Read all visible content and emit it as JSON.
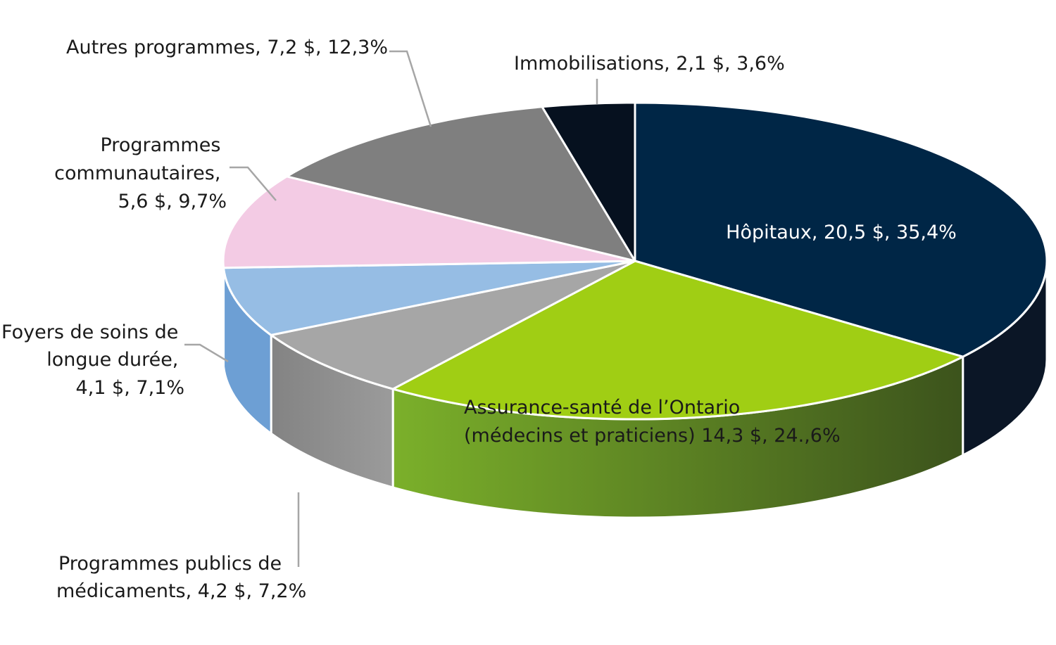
{
  "chart_data": {
    "type": "pie",
    "style": "3d-exploded-tilted",
    "title": "",
    "legend": "none",
    "slices": [
      {
        "name": "Hôpitaux",
        "value": 20.5,
        "percent": 35.4,
        "label_lines": [
          "Hôpitaux,  20,5 $, 35,4%"
        ],
        "color": "#002646",
        "side_dark": "#0b1626",
        "label_color": "#ffffff"
      },
      {
        "name": "Assurance-santé de l’Ontario (médecins et praticiens)",
        "value": 14.3,
        "percent": 24.6,
        "label_lines": [
          "Assurance-santé de l’Ontario",
          "(médecins et praticiens) 14,3 $, 24.,6%"
        ],
        "color": "#a0ce14",
        "side_light": "#7bb02a",
        "side_dark": "#3c531c",
        "label_color": "#1a1a1a"
      },
      {
        "name": "Programmes publics de médicaments",
        "value": 4.2,
        "percent": 7.2,
        "label_lines": [
          "Programmes publics de",
          "médicaments,  4,2 $, 7,2%"
        ],
        "color": "#a6a6a6",
        "side_light": "#838383",
        "side_dark": "#9b9b9b",
        "label_color": "#1a1a1a"
      },
      {
        "name": "Foyers de soins de longue durée",
        "value": 4.1,
        "percent": 7.1,
        "label_lines": [
          "Foyers de soins de",
          "longue durée,",
          "4,1 $, 7,1%"
        ],
        "color": "#96bde4",
        "side_light": "#6d9fd4",
        "side_dark": "#6d9fd4",
        "label_color": "#1a1a1a"
      },
      {
        "name": "Programmes communautaires",
        "value": 5.6,
        "percent": 9.7,
        "label_lines": [
          "Programmes",
          "communautaires,",
          "5,6 $, 9,7%"
        ],
        "color": "#f3cbe4",
        "label_color": "#1a1a1a"
      },
      {
        "name": "Autres programmes",
        "value": 7.2,
        "percent": 12.3,
        "label_lines": [
          "Autres programmes,  7,2 $, 12,3%"
        ],
        "color": "#7f7f7f",
        "label_color": "#1a1a1a"
      },
      {
        "name": "Immobilisations",
        "value": 2.1,
        "percent": 3.6,
        "label_lines": [
          "Immobilisations,  2,1 $, 3,6%"
        ],
        "color": "#06111f",
        "label_color": "#1a1a1a"
      }
    ]
  }
}
